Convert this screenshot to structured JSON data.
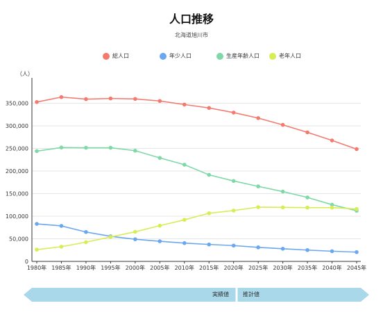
{
  "chart_data": {
    "type": "line",
    "title": "人口推移",
    "subtitle": "北海道旭川市",
    "ylabel": "（人）",
    "categories": [
      "1980年",
      "1985年",
      "1990年",
      "1995年",
      "2000年",
      "2005年",
      "2010年",
      "2015年",
      "2020年",
      "2025年",
      "2030年",
      "2035年",
      "2040年",
      "2045年"
    ],
    "ylim": [
      0,
      400000
    ],
    "yticks": [
      0,
      50000,
      100000,
      150000,
      200000,
      250000,
      300000,
      350000
    ],
    "ytick_labels": [
      "0",
      "50,000",
      "100,000",
      "150,000",
      "200,000",
      "250,000",
      "300,000",
      "350,000"
    ],
    "grid": true,
    "legend_position": "top",
    "series": [
      {
        "name": "総人口",
        "color": "#f47a6f",
        "values": [
          352619,
          363631,
          359071,
          360568,
          359536,
          355004,
          347095,
          339605,
          329306,
          317126,
          302148,
          285592,
          267616,
          248497
        ]
      },
      {
        "name": "年少人口",
        "color": "#6aa7ef",
        "values": [
          83000,
          78500,
          65000,
          55500,
          49000,
          44500,
          40500,
          37500,
          35000,
          31000,
          28000,
          25000,
          22500,
          20500
        ]
      },
      {
        "name": "生産年齢人口",
        "color": "#7ed9a6",
        "values": [
          244000,
          252000,
          251500,
          251500,
          245000,
          229000,
          214000,
          191500,
          178000,
          166000,
          154500,
          141500,
          125500,
          112000
        ]
      },
      {
        "name": "老年人口",
        "color": "#d8ec54",
        "values": [
          26000,
          32500,
          42500,
          54000,
          65500,
          79000,
          92000,
          106500,
          112500,
          120000,
          119500,
          119000,
          119000,
          116000
        ]
      }
    ],
    "periods": {
      "actual": "実績値",
      "projected": "推計値"
    },
    "period_colors": {
      "band": "#a8d8ea"
    }
  }
}
